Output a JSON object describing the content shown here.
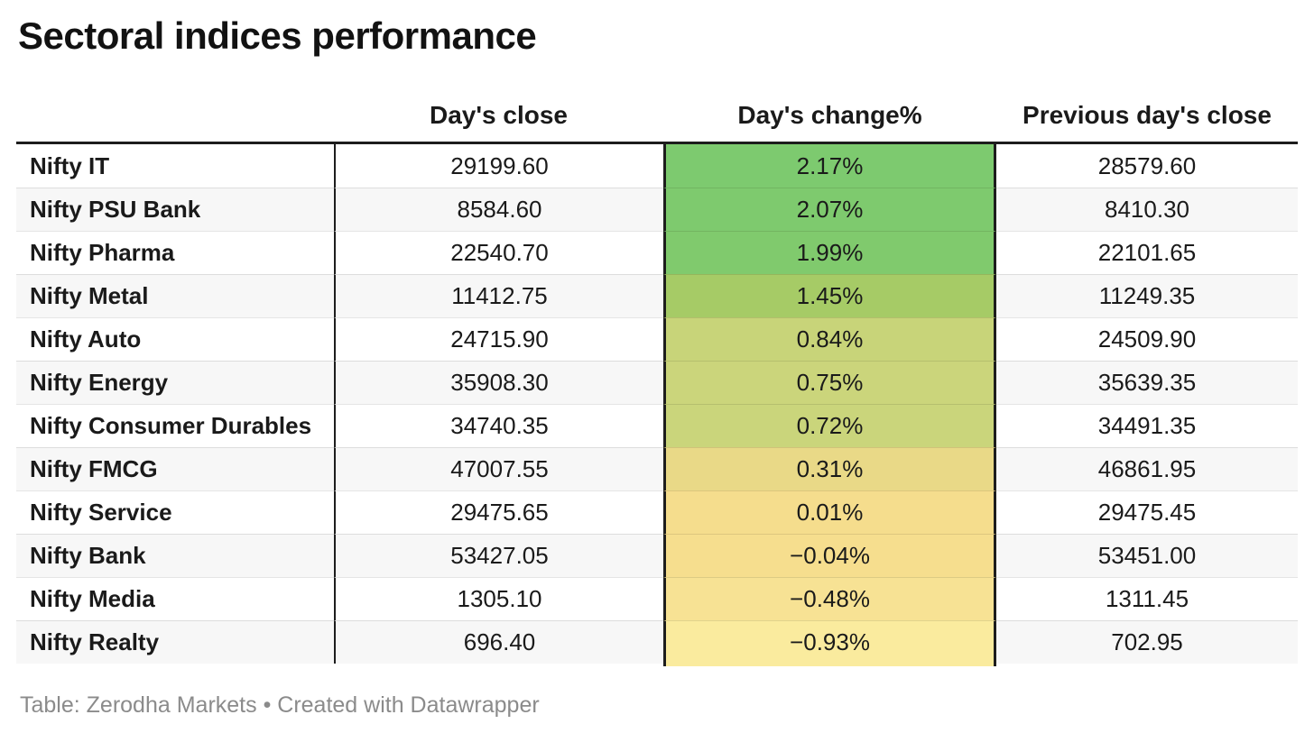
{
  "title": "Sectoral indices performance",
  "columns": {
    "index": "",
    "close": "Day's close",
    "change": "Day's change%",
    "prev": "Previous day's close"
  },
  "footer": {
    "text": "Table: Zerodha Markets • Created with Datawrapper"
  },
  "colors": {
    "table_border": "#1d1d1d",
    "alt_row_bg": "#f7f7f7",
    "footer_text": "#8b8b8b",
    "heat_max_green": "#7dca6f",
    "heat_min_yellow": "#faeb9e"
  },
  "chart_data": {
    "type": "table",
    "title": "Sectoral indices performance",
    "columns": [
      "",
      "Day's close",
      "Day's change%",
      "Previous day's close"
    ],
    "heatmap_column": "Day's change%",
    "rows": [
      {
        "name": "Nifty IT",
        "close": "29199.60",
        "change": "2.17%",
        "change_color": "#7dca6f",
        "prev": "28579.60"
      },
      {
        "name": "Nifty PSU Bank",
        "close": "8584.60",
        "change": "2.07%",
        "change_color": "#7eca6e",
        "prev": "8410.30"
      },
      {
        "name": "Nifty Pharma",
        "close": "22540.70",
        "change": "1.99%",
        "change_color": "#80ca6d",
        "prev": "22101.65"
      },
      {
        "name": "Nifty Metal",
        "close": "11412.75",
        "change": "1.45%",
        "change_color": "#a6cb66",
        "prev": "11249.35"
      },
      {
        "name": "Nifty Auto",
        "close": "24715.90",
        "change": "0.84%",
        "change_color": "#c8d479",
        "prev": "24509.90"
      },
      {
        "name": "Nifty Energy",
        "close": "35908.30",
        "change": "0.75%",
        "change_color": "#cbd57b",
        "prev": "35639.35"
      },
      {
        "name": "Nifty Consumer Durables",
        "close": "34740.35",
        "change": "0.72%",
        "change_color": "#cad57b",
        "prev": "34491.35"
      },
      {
        "name": "Nifty FMCG",
        "close": "47007.55",
        "change": "0.31%",
        "change_color": "#e9d987",
        "prev": "46861.95"
      },
      {
        "name": "Nifty Service",
        "close": "29475.65",
        "change": "0.01%",
        "change_color": "#f5dd8d",
        "prev": "29475.45"
      },
      {
        "name": "Nifty Bank",
        "close": "53427.05",
        "change": "−0.04%",
        "change_color": "#f6de8e",
        "prev": "53451.00"
      },
      {
        "name": "Nifty Media",
        "close": "1305.10",
        "change": "−0.48%",
        "change_color": "#f7e294",
        "prev": "1311.45"
      },
      {
        "name": "Nifty Realty",
        "close": "696.40",
        "change": "−0.93%",
        "change_color": "#faeb9e",
        "prev": "702.95"
      }
    ]
  }
}
